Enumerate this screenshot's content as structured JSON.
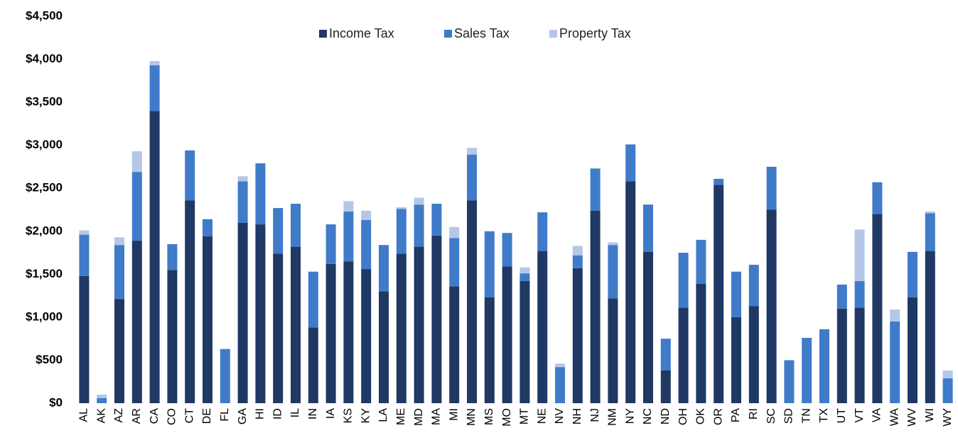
{
  "chart_data": {
    "type": "stacked_bar",
    "categories": [
      "AL",
      "AK",
      "AZ",
      "AR",
      "CA",
      "CO",
      "CT",
      "DE",
      "FL",
      "GA",
      "HI",
      "ID",
      "IL",
      "IN",
      "IA",
      "KS",
      "KY",
      "LA",
      "ME",
      "MD",
      "MA",
      "MI",
      "MN",
      "MS",
      "MO",
      "MT",
      "NE",
      "NV",
      "NH",
      "NJ",
      "NM",
      "NY",
      "NC",
      "ND",
      "OH",
      "OK",
      "OR",
      "PA",
      "RI",
      "SC",
      "SD",
      "TN",
      "TX",
      "UT",
      "VT",
      "VA",
      "WA",
      "WV",
      "WI",
      "WY"
    ],
    "series": [
      {
        "name": "Income Tax",
        "color": "#203864",
        "values": [
          1480,
          0,
          1210,
          1890,
          3400,
          1550,
          2360,
          1940,
          0,
          2100,
          2080,
          1740,
          1820,
          880,
          1620,
          1650,
          1560,
          1300,
          1740,
          1820,
          1950,
          1360,
          2360,
          1230,
          1590,
          1420,
          1770,
          0,
          1570,
          2240,
          1220,
          2580,
          1760,
          380,
          1110,
          1390,
          2540,
          1000,
          1130,
          2250,
          0,
          0,
          0,
          1100,
          1110,
          2200,
          0,
          1230,
          1770,
          0
        ]
      },
      {
        "name": "Sales Tax",
        "color": "#3f7bc9",
        "values": [
          480,
          60,
          630,
          800,
          530,
          300,
          580,
          200,
          630,
          480,
          710,
          530,
          500,
          650,
          460,
          580,
          570,
          540,
          520,
          490,
          370,
          560,
          530,
          770,
          390,
          90,
          450,
          420,
          150,
          490,
          620,
          430,
          550,
          370,
          640,
          510,
          70,
          530,
          480,
          500,
          500,
          760,
          860,
          280,
          310,
          370,
          950,
          530,
          440,
          290
        ]
      },
      {
        "name": "Property Tax",
        "color": "#b4c7e7",
        "values": [
          50,
          40,
          90,
          240,
          50,
          0,
          0,
          0,
          0,
          60,
          0,
          0,
          0,
          0,
          0,
          120,
          110,
          0,
          20,
          80,
          0,
          130,
          80,
          0,
          0,
          70,
          0,
          40,
          110,
          0,
          30,
          0,
          0,
          0,
          0,
          0,
          0,
          0,
          0,
          0,
          0,
          0,
          0,
          0,
          600,
          0,
          140,
          0,
          20,
          90
        ]
      }
    ],
    "ylim": [
      0,
      4500
    ],
    "yticks": [
      {
        "value": 0,
        "label": "$0"
      },
      {
        "value": 500,
        "label": "$500"
      },
      {
        "value": 1000,
        "label": "$1,000"
      },
      {
        "value": 1500,
        "label": "$1,500"
      },
      {
        "value": 2000,
        "label": "$2,000"
      },
      {
        "value": 2500,
        "label": "$2,500"
      },
      {
        "value": 3000,
        "label": "$3,000"
      },
      {
        "value": 3500,
        "label": "$3,500"
      },
      {
        "value": 4000,
        "label": "$4,000"
      },
      {
        "value": 4500,
        "label": "$4,500"
      }
    ],
    "grid": false,
    "legend": "top"
  }
}
